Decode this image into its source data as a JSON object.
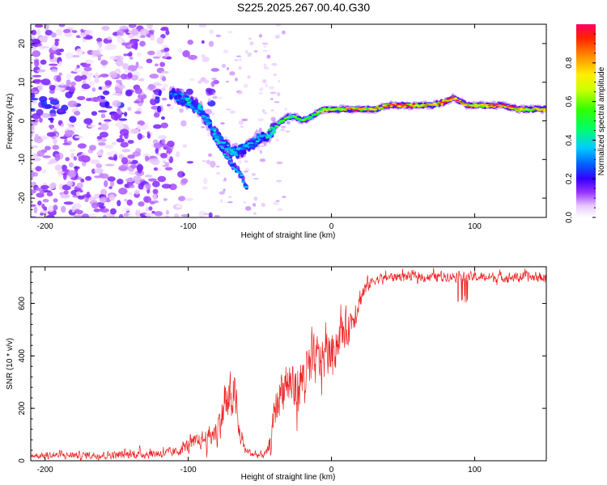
{
  "title": "S225.2025.267.00.40.G30",
  "chart_data": [
    {
      "type": "heatmap",
      "name": "spectrogram",
      "xlabel": "Height of straight line (km)",
      "ylabel": "Frequency (Hz)",
      "xlim": [
        -210,
        150
      ],
      "ylim": [
        -25,
        25
      ],
      "xticks": [
        -200,
        -100,
        0,
        100
      ],
      "yticks": [
        -20,
        -10,
        0,
        10,
        20
      ],
      "colorbar": {
        "label": "Normalized spectral amplitude",
        "range": [
          0,
          1
        ],
        "ticks": [
          0.0,
          0.2,
          0.4,
          0.6,
          0.8
        ]
      },
      "ridge": {
        "x": [
          -110,
          -100,
          -92,
          -85,
          -80,
          -75,
          -70,
          -65,
          -60,
          -55,
          -50,
          -45,
          -40,
          -35,
          -30,
          -25,
          -20,
          -15,
          -10,
          -5,
          0,
          10,
          20,
          30,
          40,
          50,
          60,
          70,
          80,
          85,
          90,
          95,
          100,
          110,
          120,
          130,
          140,
          150
        ],
        "y": [
          7,
          5,
          3,
          -1,
          -4,
          -6,
          -8,
          -8,
          -7,
          -6,
          -4,
          -4,
          -2,
          0,
          1,
          1,
          0,
          1,
          2,
          3,
          3,
          3,
          3,
          3,
          4,
          4,
          4,
          4,
          5,
          6,
          5,
          4,
          4,
          4,
          4,
          3,
          3,
          3
        ]
      },
      "branch": {
        "x": [
          -82,
          -75,
          -70,
          -65,
          -62,
          -60,
          -58
        ],
        "y": [
          -4,
          -8,
          -11,
          -13,
          -15,
          -17,
          -18
        ]
      }
    },
    {
      "type": "line",
      "name": "snr",
      "xlabel": "Height of straight line (km)",
      "ylabel": "SNR (10 * v/v)",
      "xlim": [
        -210,
        150
      ],
      "ylim": [
        0,
        740
      ],
      "xticks": [
        -200,
        -100,
        0,
        100
      ],
      "yticks": [
        0,
        200,
        400,
        600
      ],
      "color": "#ee2222",
      "envelope": {
        "x": [
          -210,
          -150,
          -110,
          -100,
          -90,
          -85,
          -80,
          -75,
          -70,
          -68,
          -65,
          -60,
          -55,
          -50,
          -45,
          -42,
          -40,
          -35,
          -30,
          -25,
          -20,
          -15,
          -10,
          -5,
          0,
          5,
          10,
          15,
          20,
          25,
          30,
          40,
          50,
          60,
          80,
          100,
          120,
          150
        ],
        "y": [
          20,
          22,
          30,
          60,
          80,
          90,
          120,
          200,
          230,
          280,
          120,
          40,
          25,
          20,
          30,
          80,
          180,
          280,
          300,
          260,
          320,
          350,
          380,
          400,
          420,
          470,
          500,
          550,
          620,
          670,
          690,
          700,
          705,
          700,
          705,
          700,
          700,
          700
        ]
      },
      "noise_amplitude": {
        "x": [
          -210,
          -110,
          -90,
          -80,
          -75,
          -70,
          -65,
          -60,
          -45,
          -40,
          -30,
          -20,
          -10,
          0,
          10,
          20,
          30,
          150
        ],
        "y": [
          15,
          25,
          45,
          70,
          110,
          140,
          70,
          20,
          20,
          90,
          130,
          140,
          130,
          110,
          100,
          60,
          25,
          25
        ]
      }
    }
  ]
}
